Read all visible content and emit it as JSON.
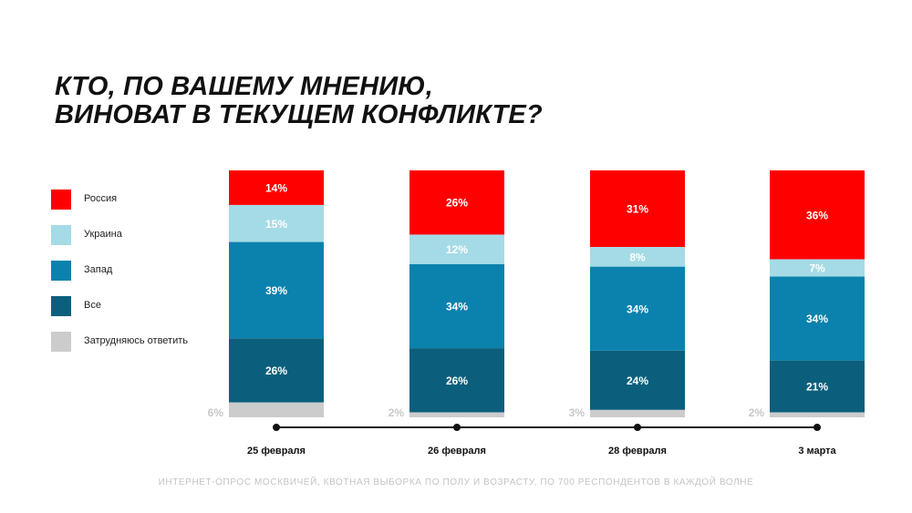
{
  "title": {
    "line1": "КТО, ПО ВАШЕМУ МНЕНИЮ,",
    "line2": "ВИНОВАТ В ТЕКУЩЕМ КОНФЛИКТЕ?"
  },
  "colors": {
    "russia": "#ff0000",
    "ukraine": "#a5dbe6",
    "west": "#0a82ad",
    "all": "#0b5f7c",
    "undecided": "#cccccc"
  },
  "legend": [
    {
      "label": "Россия",
      "color_key": "russia"
    },
    {
      "label": "Украина",
      "color_key": "ukraine"
    },
    {
      "label": "Запад",
      "color_key": "west"
    },
    {
      "label": "Все",
      "color_key": "all"
    },
    {
      "label": "Затрудняюсь ответить",
      "color_key": "undecided"
    }
  ],
  "chart_data": {
    "type": "bar",
    "stacked": true,
    "categories": [
      "25 февраля",
      "26 февраля",
      "28 февраля",
      "3 марта"
    ],
    "series": [
      {
        "name": "Россия",
        "color_key": "russia",
        "values": [
          14,
          26,
          31,
          36
        ],
        "labels": [
          "14%",
          "26%",
          "31%",
          "36%"
        ]
      },
      {
        "name": "Украина",
        "color_key": "ukraine",
        "values": [
          15,
          12,
          8,
          7
        ],
        "labels": [
          "15%",
          "12%",
          "8%",
          "7%"
        ]
      },
      {
        "name": "Запад",
        "color_key": "west",
        "values": [
          39,
          34,
          34,
          34
        ],
        "labels": [
          "39%",
          "34%",
          "34%",
          "34%"
        ]
      },
      {
        "name": "Все",
        "color_key": "all",
        "values": [
          26,
          26,
          24,
          21
        ],
        "labels": [
          "26%",
          "26%",
          "24%",
          "21%"
        ]
      },
      {
        "name": "Затрудняюсь ответить",
        "color_key": "undecided",
        "values": [
          6,
          2,
          3,
          2
        ],
        "labels": [
          "6%",
          "2%",
          "3%",
          "2%"
        ]
      }
    ],
    "ylim": [
      0,
      100
    ],
    "grid": false,
    "legend_position": "left"
  },
  "footnote": "ИНТЕРНЕТ-ОПРОС МОСКВИЧЕЙ, КВОТНАЯ ВЫБОРКА ПО ПОЛУ И ВОЗРАСТУ, ПО 700 РЕСПОНДЕНТОВ В КАЖДОЙ ВОЛНЕ"
}
